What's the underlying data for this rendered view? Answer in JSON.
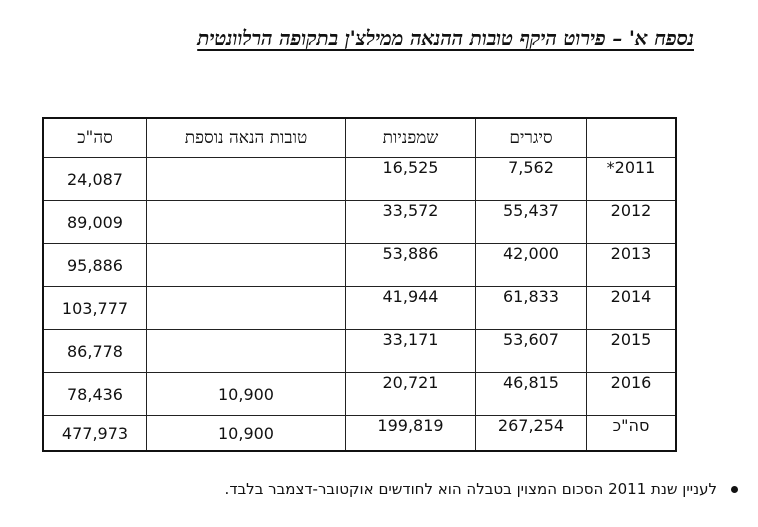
{
  "title": "נספח א' – פירוט היקף טובות ההנאה ממילצ'ן בתקופה הרלוונטית",
  "table": {
    "headers": {
      "year": "",
      "cigars": "סיגרים",
      "champagne": "שמפניות",
      "extra_benefits": "טובות הנאה נוספת",
      "total": "סה\"כ"
    },
    "rows": [
      {
        "year": "2011*",
        "cigars": "7,562",
        "champagne": "16,525",
        "extra_benefits": "",
        "total": "24,087"
      },
      {
        "year": "2012",
        "cigars": "55,437",
        "champagne": "33,572",
        "extra_benefits": "",
        "total": "89,009"
      },
      {
        "year": "2013",
        "cigars": "42,000",
        "champagne": "53,886",
        "extra_benefits": "",
        "total": "95,886"
      },
      {
        "year": "2014",
        "cigars": "61,833",
        "champagne": "41,944",
        "extra_benefits": "",
        "total": "103,777"
      },
      {
        "year": "2015",
        "cigars": "53,607",
        "champagne": "33,171",
        "extra_benefits": "",
        "total": "86,778"
      },
      {
        "year": "2016",
        "cigars": "46,815",
        "champagne": "20,721",
        "extra_benefits": "10,900",
        "total": "78,436"
      }
    ],
    "total_row": {
      "year": "סה\"כ",
      "cigars": "267,254",
      "champagne": "199,819",
      "extra_benefits": "10,900",
      "total": "477,973"
    }
  },
  "footnote": "לעניין שנת 2011 הסכום המצוין בטבלה הוא לחודשים אוקטובר-דצמבר בלבד."
}
